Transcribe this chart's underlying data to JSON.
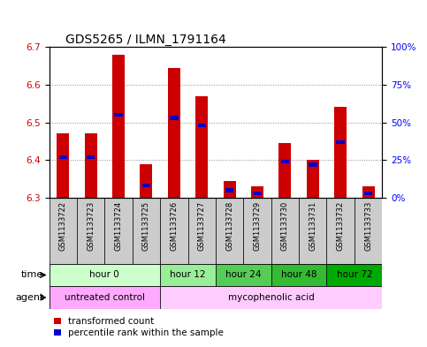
{
  "title": "GDS5265 / ILMN_1791164",
  "samples": [
    "GSM1133722",
    "GSM1133723",
    "GSM1133724",
    "GSM1133725",
    "GSM1133726",
    "GSM1133727",
    "GSM1133728",
    "GSM1133729",
    "GSM1133730",
    "GSM1133731",
    "GSM1133732",
    "GSM1133733"
  ],
  "transformed_count": [
    6.47,
    6.47,
    6.68,
    6.39,
    6.645,
    6.57,
    6.345,
    6.33,
    6.445,
    6.4,
    6.54,
    6.33
  ],
  "percentile_rank": [
    27,
    27,
    55,
    8,
    53,
    48,
    5,
    3,
    24,
    22,
    37,
    3
  ],
  "ylim_left": [
    6.3,
    6.7
  ],
  "ylim_right": [
    0,
    100
  ],
  "yticks_left": [
    6.3,
    6.4,
    6.5,
    6.6,
    6.7
  ],
  "yticks_right": [
    0,
    25,
    50,
    75,
    100
  ],
  "ytick_labels_right": [
    "0%",
    "25%",
    "50%",
    "75%",
    "100%"
  ],
  "bar_bottom": 6.3,
  "bar_color_red": "#cc0000",
  "bar_color_blue": "#0000cc",
  "blue_bar_width": 0.3,
  "red_bar_width": 0.45,
  "time_groups": [
    {
      "label": "hour 0",
      "start": 0,
      "end": 4,
      "color": "#ccffcc"
    },
    {
      "label": "hour 12",
      "start": 4,
      "end": 6,
      "color": "#99ee99"
    },
    {
      "label": "hour 24",
      "start": 6,
      "end": 8,
      "color": "#55cc55"
    },
    {
      "label": "hour 48",
      "start": 8,
      "end": 10,
      "color": "#33bb33"
    },
    {
      "label": "hour 72",
      "start": 10,
      "end": 12,
      "color": "#00aa00"
    }
  ],
  "agent_groups": [
    {
      "label": "untreated control",
      "start": 0,
      "end": 4,
      "color": "#ffaaff"
    },
    {
      "label": "mycophenolic acid",
      "start": 4,
      "end": 12,
      "color": "#ffccff"
    }
  ],
  "xlabel_time": "time",
  "xlabel_agent": "agent",
  "legend_red": "transformed count",
  "legend_blue": "percentile rank within the sample",
  "sample_bg_color": "#cccccc",
  "title_fontsize": 10,
  "tick_fontsize": 7.5
}
